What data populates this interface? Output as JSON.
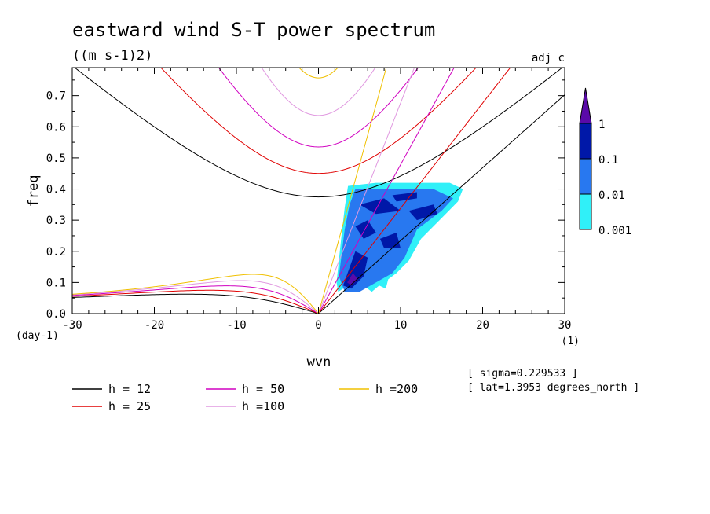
{
  "chart_data": {
    "type": "line",
    "title": "eastward wind S-T power spectrum",
    "subtitle": "((m s-1)2)",
    "corner_label": "adj_c",
    "xlabel": "wvn",
    "ylabel": "freq",
    "x_unit": "(1)",
    "y_unit": "(day-1)",
    "xlim": [
      -30,
      30
    ],
    "ylim": [
      0,
      0.79
    ],
    "xticks": [
      -30,
      -20,
      -10,
      0,
      10,
      20,
      30
    ],
    "yticks": [
      0.0,
      0.1,
      0.2,
      0.3,
      0.4,
      0.5,
      0.6,
      0.7
    ],
    "xtick_labels": [
      "-30",
      "-20",
      "-10",
      "0",
      "10",
      "20",
      "30"
    ],
    "ytick_labels": [
      "0.0",
      "0.1",
      "0.2",
      "0.3",
      "0.4",
      "0.5",
      "0.6",
      "0.7"
    ],
    "grid": false,
    "legend_position": "bottom",
    "series": [
      {
        "name": "h = 12",
        "h": 12,
        "color": "#000000"
      },
      {
        "name": "h = 25",
        "h": 25,
        "color": "#e00000"
      },
      {
        "name": "h = 50",
        "h": 50,
        "color": "#d000c0"
      },
      {
        "name": "h =100",
        "h": 100,
        "color": "#e098e0"
      },
      {
        "name": "h =200",
        "h": 200,
        "color": "#f0c000"
      }
    ],
    "colorbar": {
      "levels": [
        "1",
        "0.1",
        "0.01",
        "0.001"
      ],
      "colors": [
        "#5a0aa8",
        "#0018a8",
        "#2878f0",
        "#30f0f8"
      ]
    },
    "annotations": [
      "[ sigma=0.229533 ]",
      "[ lat=1.3953 degrees_north ]"
    ]
  }
}
